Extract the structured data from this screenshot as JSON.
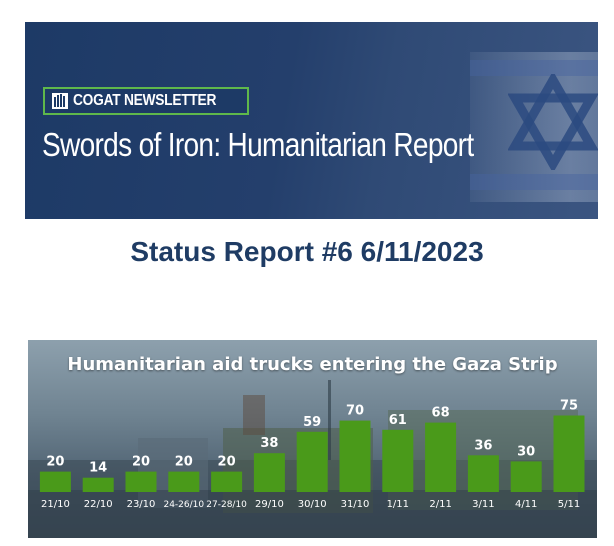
{
  "banner": {
    "newsletter_label": "COGAT NEWSLETTER",
    "title": "Swords of Iron:  Humanitarian Report",
    "icons": [
      "cogat-emblem-icon",
      "star-of-david-icon"
    ]
  },
  "status_title": "Status Report #6 6/11/2023",
  "chart_data": {
    "type": "bar",
    "title": "Humanitarian aid trucks entering the Gaza Strip",
    "xlabel": "",
    "ylabel": "",
    "categories": [
      "21/10",
      "22/10",
      "23/10",
      "24-26/10",
      "27-28/10",
      "29/10",
      "30/10",
      "31/10",
      "1/11",
      "2/11",
      "3/11",
      "4/11",
      "5/11"
    ],
    "values": [
      20,
      14,
      20,
      20,
      20,
      38,
      59,
      70,
      61,
      68,
      36,
      30,
      75
    ],
    "bar_color": "#4a9a1a",
    "grid": false,
    "legend": "none"
  }
}
